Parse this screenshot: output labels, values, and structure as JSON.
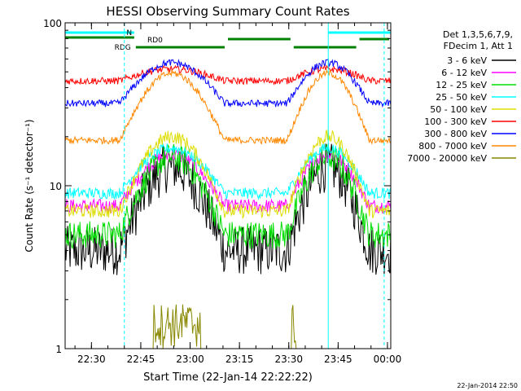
{
  "chart_data": {
    "type": "line",
    "title": "HESSI Observing Summary Count Rates",
    "xlabel": "Start Time (22-Jan-14 22:22:22)",
    "ylabel": "Count Rate (s⁻¹ detector⁻¹)",
    "y_scale": "log",
    "ylim": [
      1,
      100
    ],
    "y_ticks": [
      {
        "value": 1,
        "label": "1"
      },
      {
        "value": 10,
        "label": "10"
      },
      {
        "value": 100,
        "label": "100"
      }
    ],
    "x_range_minutes": [
      0,
      99
    ],
    "x_ticks": [
      {
        "minute": 8,
        "label": "22:30"
      },
      {
        "minute": 23,
        "label": "22:45"
      },
      {
        "minute": 38,
        "label": "23:00"
      },
      {
        "minute": 53,
        "label": "23:15"
      },
      {
        "minute": 68,
        "label": "23:30"
      },
      {
        "minute": 83,
        "label": "23:45"
      },
      {
        "minute": 98,
        "label": "00:00"
      }
    ],
    "legend_header": [
      "Det 1,3,5,6,7,9,",
      "FDecim 1, Att 1"
    ],
    "legend_position": "right",
    "series": [
      {
        "name": "3 - 6 keV",
        "color": "#000000",
        "low": 4.0,
        "high": 13.0,
        "noise": 0.35
      },
      {
        "name": "6 - 12 keV",
        "color": "#ff00ff",
        "low": 7.5,
        "high": 15.5,
        "noise": 0.1
      },
      {
        "name": "12 - 25 keV",
        "color": "#00dd00",
        "low": 5.0,
        "high": 15.0,
        "noise": 0.2
      },
      {
        "name": "25 - 50 keV",
        "color": "#00ffff",
        "low": 9.0,
        "high": 17.0,
        "noise": 0.08
      },
      {
        "name": "50 - 100 keV",
        "color": "#dddd00",
        "low": 7.0,
        "high": 20.0,
        "noise": 0.1
      },
      {
        "name": "100 - 300 keV",
        "color": "#ff0000",
        "low": 44.0,
        "high": 52.0,
        "noise": 0.05
      },
      {
        "name": "300 - 800 keV",
        "color": "#0000ff",
        "low": 32.0,
        "high": 57.0,
        "noise": 0.05
      },
      {
        "name": "800 - 7000 keV",
        "color": "#ff8800",
        "low": 19.0,
        "high": 49.0,
        "noise": 0.05
      },
      {
        "name": "7000 - 20000 keV",
        "color": "#888800",
        "low": 1.0,
        "high": 1.0,
        "noise": 0.0
      }
    ],
    "day_intervals": [
      [
        16.5,
        48.5
      ],
      [
        67.5,
        92.5
      ]
    ],
    "saa_bursts_minutes": [
      [
        27,
        41
      ],
      [
        69,
        70
      ]
    ],
    "flag_bars": {
      "night": {
        "label": "N",
        "color": "#00ffff",
        "intervals": [
          [
            0,
            21
          ],
          [
            80,
            99
          ]
        ]
      },
      "rd0": {
        "label": "RD0",
        "color": "#008000",
        "intervals": [
          [
            21,
            49
          ],
          [
            49,
            69
          ],
          [
            69,
            89
          ],
          [
            89,
            99
          ]
        ]
      },
      "rdg": {
        "label": "RDG",
        "color": "#008000"
      }
    },
    "vertical_lines": {
      "solid_minutes": [
        0,
        80
      ],
      "dashed_minutes": [
        18,
        97
      ]
    },
    "grid": false
  },
  "footer_date": "22-Jan-2014 22:50"
}
